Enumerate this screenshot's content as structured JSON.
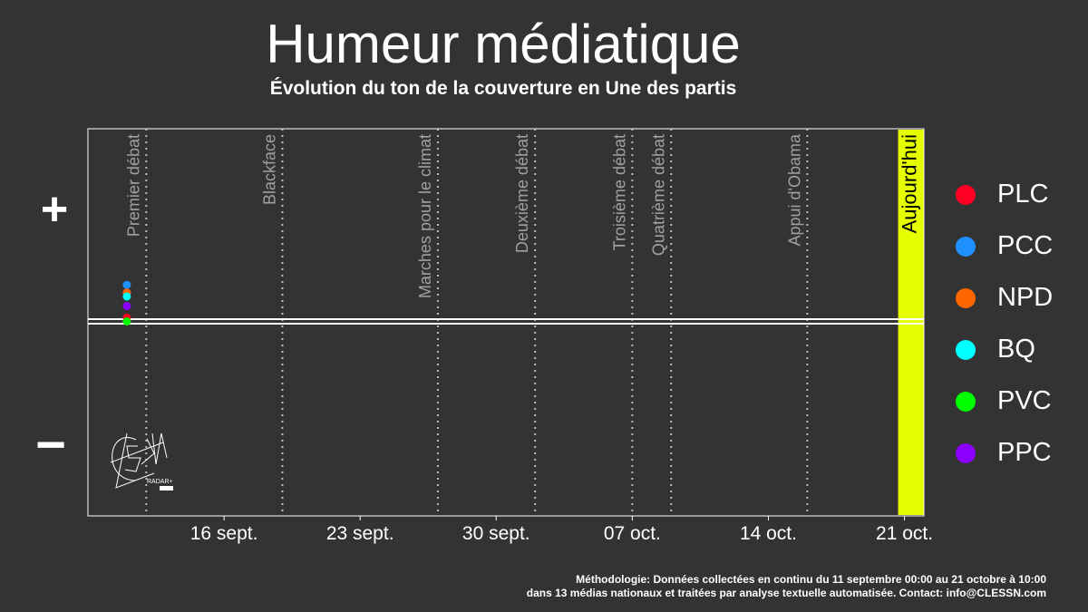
{
  "title": "Humeur médiatique",
  "subtitle": "Évolution du ton de la couverture en Une des partis",
  "y_axis_symbols": {
    "positive": "+",
    "negative": "−"
  },
  "logo": {
    "text": "CLESSN",
    "caption": "RADAR+"
  },
  "legend": [
    {
      "label": "PLC",
      "color": "#ff0022"
    },
    {
      "label": "PCC",
      "color": "#1e90ff"
    },
    {
      "label": "NPD",
      "color": "#ff6600"
    },
    {
      "label": "BQ",
      "color": "#00ffff"
    },
    {
      "label": "PVC",
      "color": "#00ff00"
    },
    {
      "label": "PPC",
      "color": "#8b00ff"
    }
  ],
  "methodology": {
    "line1": "Méthodologie: Données collectées en continu du 11 septembre 00:00 au 21 octobre à 10:00",
    "line2": "dans 13 médias nationaux et traitées par analyse textuelle automatisée. Contact: info@CLESSN.com"
  },
  "chart_data": {
    "type": "scatter",
    "title": "Humeur médiatique",
    "subtitle": "Évolution du ton de la couverture en Une des partis",
    "xlim": [
      "2019-09-09",
      "2019-10-22"
    ],
    "ylim": [
      -1,
      1
    ],
    "x_ticks": [
      {
        "date": "2019-09-16",
        "label": "16 sept."
      },
      {
        "date": "2019-09-23",
        "label": "23 sept."
      },
      {
        "date": "2019-09-30",
        "label": "30 sept."
      },
      {
        "date": "2019-10-07",
        "label": "07 oct."
      },
      {
        "date": "2019-10-14",
        "label": "14 oct."
      },
      {
        "date": "2019-10-21",
        "label": "21 oct."
      }
    ],
    "events": [
      {
        "date": "2019-09-12",
        "label": "Premier débat"
      },
      {
        "date": "2019-09-19",
        "label": "Blackface"
      },
      {
        "date": "2019-09-27",
        "label": "Marches pour le climat"
      },
      {
        "date": "2019-10-02",
        "label": "Deuxième débat"
      },
      {
        "date": "2019-10-07",
        "label": "Troisième débat"
      },
      {
        "date": "2019-10-09",
        "label": "Quatrième débat"
      },
      {
        "date": "2019-10-16",
        "label": "Appui d'Obama"
      }
    ],
    "today": {
      "date": "2019-10-21",
      "label": "Aujourd'hui",
      "color": "#e6ff00"
    },
    "series": [
      {
        "name": "PLC",
        "color": "#ff0022",
        "points": [
          {
            "x": "2019-09-11",
            "y": 0.02
          }
        ]
      },
      {
        "name": "PCC",
        "color": "#1e90ff",
        "points": [
          {
            "x": "2019-09-11",
            "y": 0.19
          }
        ]
      },
      {
        "name": "NPD",
        "color": "#ff6600",
        "points": [
          {
            "x": "2019-09-11",
            "y": 0.15
          }
        ]
      },
      {
        "name": "BQ",
        "color": "#00ffff",
        "points": [
          {
            "x": "2019-09-11",
            "y": 0.13
          }
        ]
      },
      {
        "name": "PVC",
        "color": "#00ff00",
        "points": [
          {
            "x": "2019-09-11",
            "y": 0.0
          }
        ]
      },
      {
        "name": "PPC",
        "color": "#8b00ff",
        "points": [
          {
            "x": "2019-09-11",
            "y": 0.08
          }
        ]
      }
    ]
  }
}
